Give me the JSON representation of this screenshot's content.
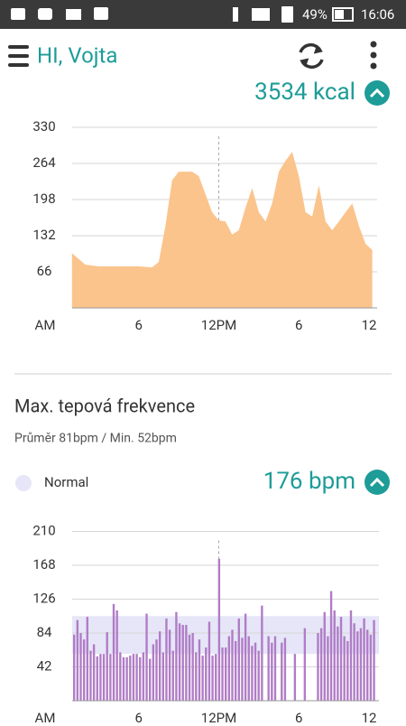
{
  "status_bar": {
    "battery": "49%",
    "time": "16:06"
  },
  "header": {
    "title": "HI, Vojta"
  },
  "calories": {
    "total": "3534 kcal",
    "chart_data": {
      "type": "area",
      "color": "#fbc48c",
      "x": [
        1,
        2,
        3,
        4,
        5,
        6,
        7,
        7.5,
        8,
        8.5,
        9,
        10,
        10.5,
        11,
        11.5,
        12,
        12.5,
        13,
        13.5,
        14,
        14.5,
        15,
        15.5,
        16,
        16.5,
        17,
        17.5,
        18,
        18.5,
        19,
        19.5,
        20,
        20.5,
        21,
        21.5,
        22,
        22.5,
        23,
        23.5
      ],
      "values": [
        100,
        79,
        76,
        76,
        76,
        76,
        74,
        84,
        150,
        233,
        249,
        249,
        241,
        208,
        175,
        160,
        158,
        134,
        142,
        183,
        219,
        175,
        158,
        191,
        249,
        269,
        285,
        241,
        175,
        167,
        224,
        158,
        142,
        158,
        175,
        191,
        150,
        117,
        106
      ],
      "xlim": [
        0,
        24
      ],
      "xticks": [
        {
          "value": 0,
          "label": "AM"
        },
        6,
        {
          "value": 12,
          "label": "12PM"
        },
        {
          "value": 18,
          "label": "6"
        },
        {
          "value": 24,
          "label": "12"
        }
      ],
      "ylim": [
        0,
        330
      ],
      "yticks": [
        66,
        132,
        198,
        264,
        330
      ],
      "grid": true
    }
  },
  "heart_rate": {
    "title": "Max. tepová frekvence",
    "summary": "Průměr 81bpm / Min. 52bpm",
    "current": "176 bpm",
    "chart_data": {
      "type": "bar",
      "color": "#b07cc6",
      "values": [
        82,
        100,
        84,
        76,
        104,
        62,
        70,
        55,
        58,
        58,
        85,
        58,
        120,
        112,
        60,
        54,
        54,
        56,
        58,
        58,
        54,
        60,
        108,
        52,
        70,
        76,
        86,
        60,
        102,
        88,
        62,
        110,
        96,
        94,
        94,
        82,
        84,
        60,
        76,
        56,
        66,
        98,
        56,
        58,
        176,
        66,
        66,
        80,
        88,
        74,
        102,
        78,
        108,
        80,
        68,
        72,
        62,
        118,
        null,
        80,
        72,
        80,
        null,
        72,
        78,
        null,
        null,
        58,
        null,
        null,
        90,
        null,
        null,
        null,
        84,
        90,
        110,
        80,
        136,
        112,
        92,
        104,
        80,
        74,
        112,
        96,
        86,
        90,
        102,
        88,
        82,
        100
      ],
      "band": {
        "name": "Normal",
        "color": "#e6e6f8",
        "range": [
          58,
          105
        ]
      },
      "xlim": [
        0,
        24
      ],
      "xticks": [
        {
          "value": 0,
          "label": "AM"
        },
        6,
        {
          "value": 12,
          "label": "12PM"
        },
        {
          "value": 18,
          "label": "6"
        },
        {
          "value": 24,
          "label": "12"
        }
      ],
      "ylim": [
        0,
        210
      ],
      "yticks": [
        42,
        84,
        126,
        168,
        210
      ],
      "grid": true
    }
  }
}
